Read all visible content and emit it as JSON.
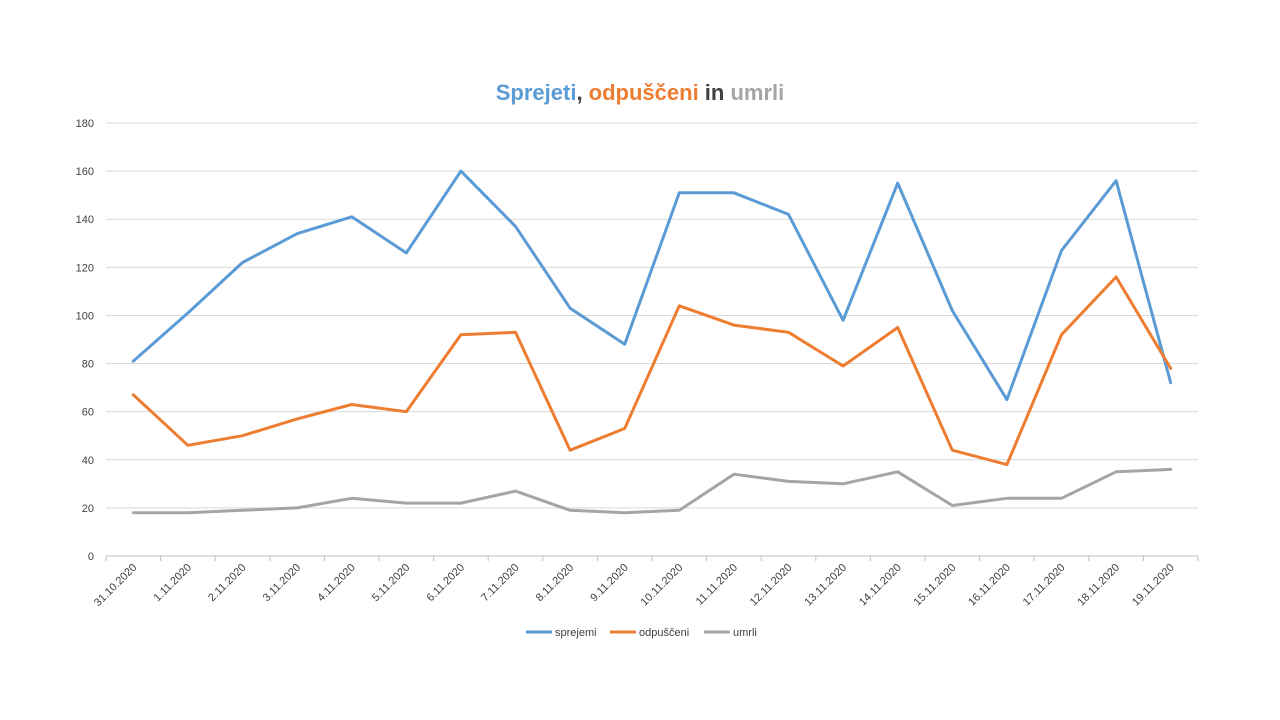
{
  "title": {
    "parts": [
      {
        "text": "Sprejeti",
        "color": "#5b9bd5"
      },
      {
        "text": ", ",
        "color": "#404040"
      },
      {
        "text": "odpuščeni",
        "color": "#ed7d31"
      },
      {
        "text": " in ",
        "color": "#404040"
      },
      {
        "text": "umrli",
        "color": "#a5a5a5"
      }
    ]
  },
  "chart_data": {
    "type": "line",
    "title": "Sprejeti, odpuščeni in umrli",
    "xlabel": "",
    "ylabel": "",
    "ylim": [
      0,
      180
    ],
    "yticks": [
      0,
      20,
      40,
      60,
      80,
      100,
      120,
      140,
      160,
      180
    ],
    "grid": true,
    "legend_position": "bottom",
    "categories": [
      "31.10.2020",
      "1.11.2020",
      "2.11.2020",
      "3.11.2020",
      "4.11.2020",
      "5.11.2020",
      "6.11.2020",
      "7.11.2020",
      "8.11.2020",
      "9.11.2020",
      "10.11.2020",
      "11.11.2020",
      "12.11.2020",
      "13.11.2020",
      "14.11.2020",
      "15.11.2020",
      "16.11.2020",
      "17.11.2020",
      "18.11.2020",
      "19.11.2020"
    ],
    "series": [
      {
        "name": "sprejemi",
        "color": "#5b9bd5",
        "values": [
          81,
          101,
          122,
          134,
          141,
          126,
          160,
          137,
          103,
          88,
          151,
          151,
          142,
          98,
          155,
          102,
          65,
          127,
          156,
          72
        ]
      },
      {
        "name": "odpuščeni",
        "color": "#ed7d31",
        "values": [
          67,
          46,
          50,
          57,
          63,
          60,
          92,
          93,
          44,
          53,
          104,
          96,
          93,
          79,
          95,
          44,
          38,
          92,
          116,
          78
        ]
      },
      {
        "name": "umrli",
        "color": "#a5a5a5",
        "values": [
          18,
          18,
          19,
          20,
          24,
          22,
          22,
          27,
          19,
          18,
          19,
          34,
          31,
          30,
          35,
          21,
          24,
          24,
          35,
          36
        ]
      }
    ]
  }
}
